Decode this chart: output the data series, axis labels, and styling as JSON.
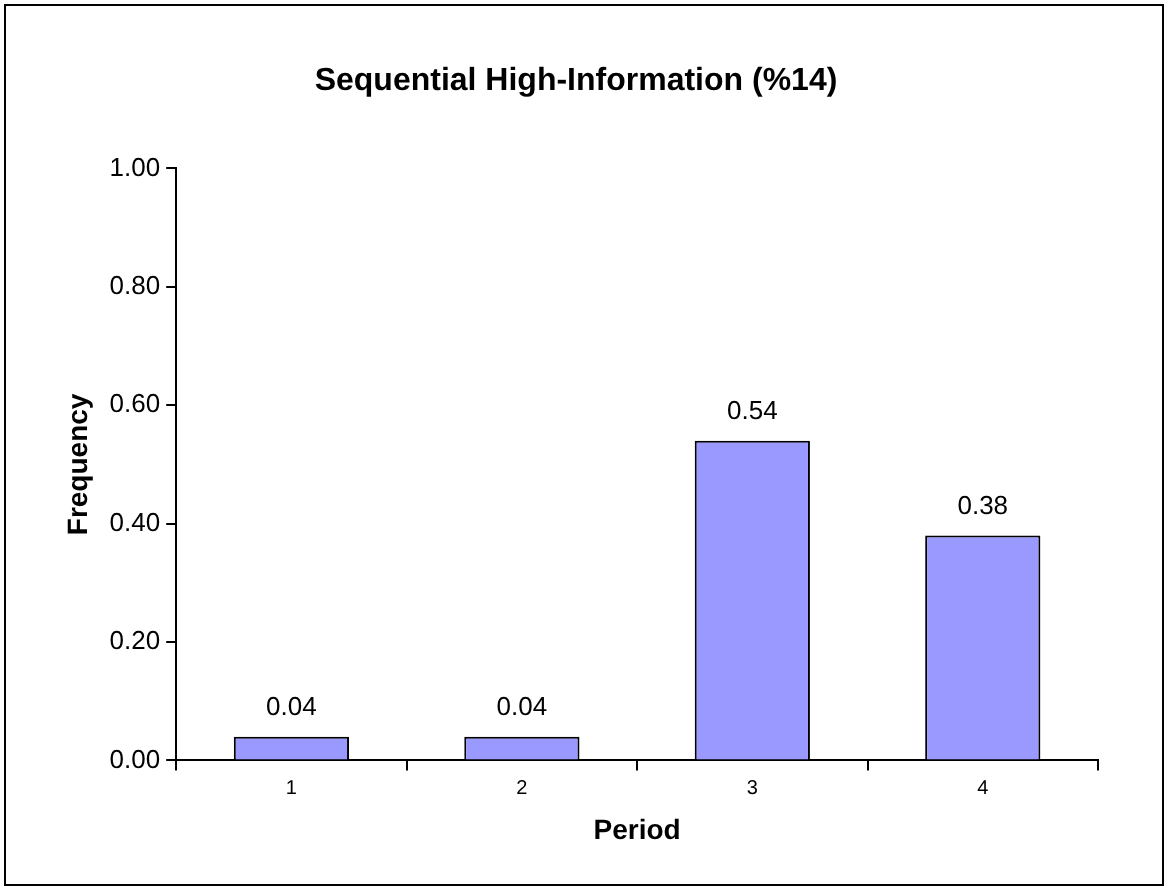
{
  "chart_data": {
    "type": "bar",
    "title": "Sequential High-Information (%14)",
    "xlabel": "Period",
    "ylabel": "Frequency",
    "categories": [
      "1",
      "2",
      "3",
      "4"
    ],
    "values": [
      0.04,
      0.04,
      0.54,
      0.38
    ],
    "value_labels": [
      "0.04",
      "0.04",
      "0.54",
      "0.38"
    ],
    "color": "#9999ff",
    "ylim": [
      0,
      1
    ],
    "yticks": [
      {
        "value": 0,
        "label": "0.00"
      },
      {
        "value": 0.2,
        "label": "0.20"
      },
      {
        "value": 0.4,
        "label": "0.40"
      },
      {
        "value": 0.6,
        "label": "0.60"
      },
      {
        "value": 0.8,
        "label": "0.80"
      },
      {
        "value": 1,
        "label": "1.00"
      }
    ],
    "grid": false,
    "legend": false
  }
}
